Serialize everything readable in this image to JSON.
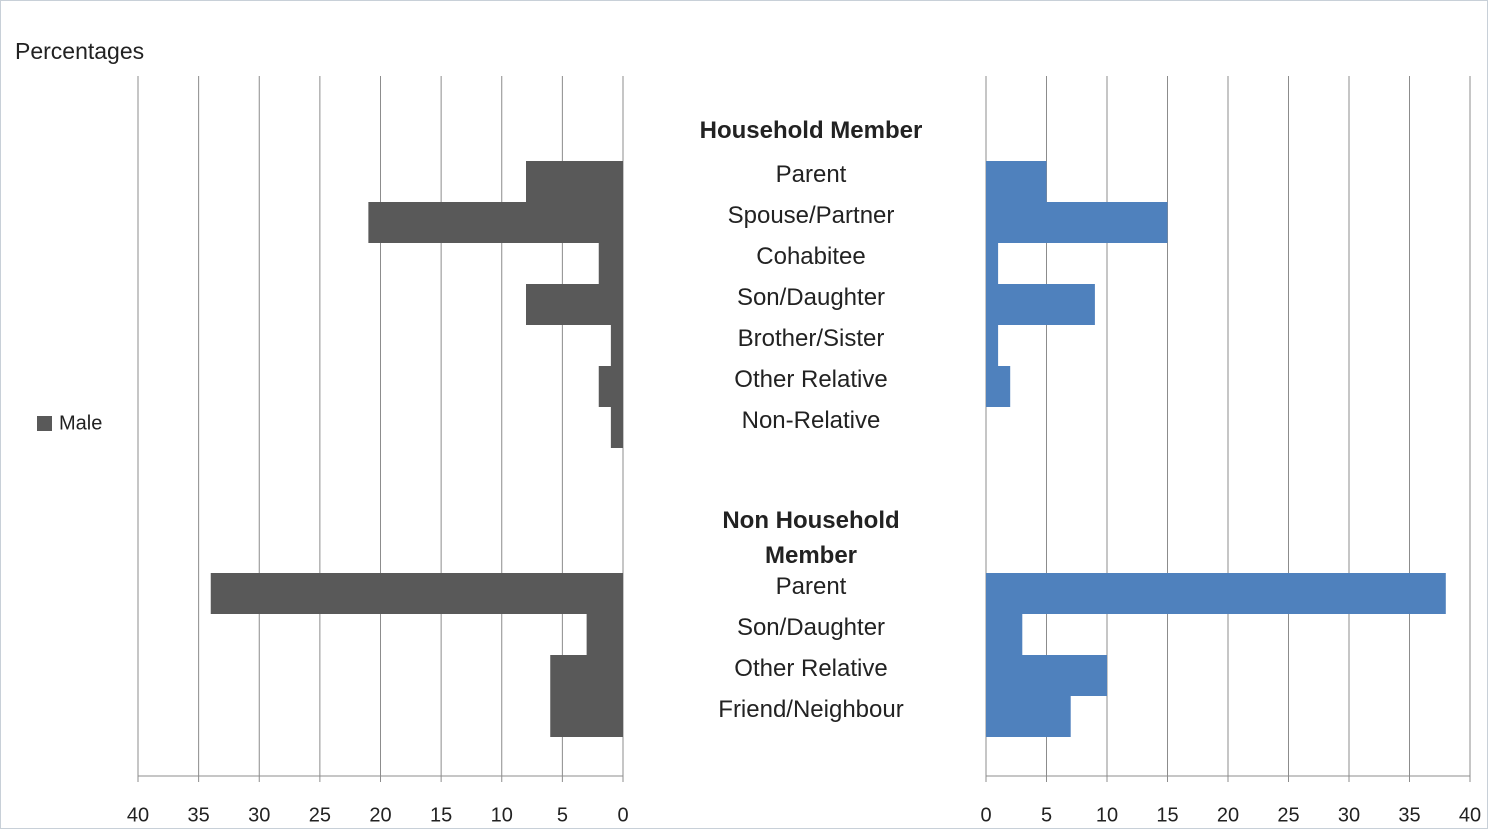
{
  "chart_data": [
    {
      "type": "bar",
      "orientation": "horizontal",
      "reversed": true,
      "y_axis_label": "Percentages",
      "groups": [
        {
          "label": "Household Member",
          "categories": [
            "Parent",
            "Spouse/Partner",
            "Cohabitee",
            "Son/Daughter",
            "Brother/Sister",
            "Other Relative",
            "Non-Relative"
          ]
        },
        {
          "label": "Non Household Member",
          "categories": [
            "Parent",
            "Son/Daughter",
            "Other Relative",
            "Friend/Neighbour"
          ]
        }
      ],
      "series": [
        {
          "name": "Male",
          "color": "#595959",
          "values": [
            8,
            21,
            2,
            8,
            1,
            2,
            1,
            34,
            3,
            6,
            6
          ]
        }
      ],
      "xlim": [
        0,
        40
      ],
      "xticks": [
        0,
        5,
        10,
        15,
        20,
        25,
        30,
        35,
        40
      ],
      "grid": true
    },
    {
      "type": "bar",
      "orientation": "horizontal",
      "reversed": false,
      "series": [
        {
          "color": "#4f81bd",
          "values": [
            5,
            15,
            1,
            9,
            1,
            2,
            0,
            38,
            3,
            10,
            7
          ]
        }
      ],
      "xlim": [
        0,
        40
      ],
      "xticks": [
        0,
        5,
        10,
        15,
        20,
        25,
        30,
        35,
        40
      ],
      "grid": true
    }
  ]
}
